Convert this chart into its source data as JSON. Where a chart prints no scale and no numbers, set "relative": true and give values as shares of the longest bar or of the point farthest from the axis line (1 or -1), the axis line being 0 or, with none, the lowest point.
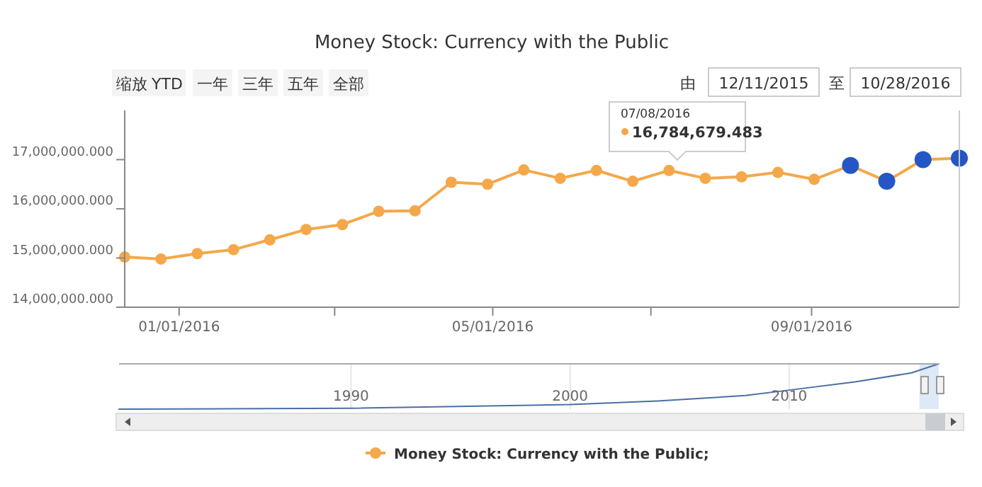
{
  "chart_data": [
    {
      "type": "line",
      "title": "Money Stock: Currency with the Public",
      "x": [
        "2015-12-11",
        "2015-12-25",
        "2016-01-08",
        "2016-01-22",
        "2016-02-05",
        "2016-02-19",
        "2016-03-04",
        "2016-03-18",
        "2016-04-01",
        "2016-04-15",
        "2016-04-29",
        "2016-05-13",
        "2016-05-27",
        "2016-06-10",
        "2016-06-24",
        "2016-07-08",
        "2016-07-22",
        "2016-08-05",
        "2016-08-19",
        "2016-09-02",
        "2016-09-16",
        "2016-09-30",
        "2016-10-14",
        "2016-10-28"
      ],
      "series": [
        {
          "name": "Money Stock: Currency with the Public;",
          "color": "#f4a84a",
          "values": [
            15020000,
            14980000,
            15090000,
            15170000,
            15370000,
            15580000,
            15680000,
            15950000,
            15960000,
            16540000,
            16500000,
            16790000,
            16620000,
            16780000,
            16560000,
            16780000,
            16620000,
            16650000,
            16740000,
            16600000,
            16880000,
            16560000,
            17000000,
            17030000
          ],
          "colors": [
            "#f4a84a",
            "#f4a84a",
            "#f4a84a",
            "#f4a84a",
            "#f4a84a",
            "#f4a84a",
            "#f4a84a",
            "#f4a84a",
            "#f4a84a",
            "#f4a84a",
            "#f4a84a",
            "#f4a84a",
            "#f4a84a",
            "#f4a84a",
            "#f4a84a",
            "#f4a84a",
            "#f4a84a",
            "#f4a84a",
            "#f4a84a",
            "#f4a84a",
            "#2457c5",
            "#2457c5",
            "#2457c5",
            "#2457c5"
          ]
        }
      ],
      "xlim": [
        "2015-12-11",
        "2016-10-28"
      ],
      "xticks": [
        {
          "value": "2016-01-01",
          "label": "01/01/2016"
        },
        {
          "value": "2016-03-01",
          "label": null
        },
        {
          "value": "2016-05-01",
          "label": "05/01/2016"
        },
        {
          "value": "2016-07-01",
          "label": null
        },
        {
          "value": "2016-09-01",
          "label": "09/01/2016"
        }
      ],
      "ylim": [
        14000000,
        18000000
      ],
      "yticks": [
        {
          "value": 14000000,
          "label": "14,000,000.000"
        },
        {
          "value": 15000000,
          "label": "15,000,000.000"
        },
        {
          "value": 16000000,
          "label": "16,000,000.000"
        },
        {
          "value": 17000000,
          "label": "17,000,000.000"
        }
      ],
      "marker": "circle",
      "grid": false,
      "legend": "bottom",
      "annotations": [
        "缩放",
        "YTD",
        "一年",
        "三年",
        "五年",
        "全部",
        "由",
        "12/11/2015",
        "至",
        "10/28/2016",
        "07/08/2016",
        "16,784,679.483"
      ]
    },
    {
      "type": "line",
      "relative": true,
      "x": [
        "1979-06",
        "1990",
        "2000",
        "2004",
        "2008",
        "2010",
        "2013",
        "2015-08",
        "2016-10-28"
      ],
      "series": [
        {
          "color": "#4a6fa5",
          "values": [
            0,
            0.02,
            0.1,
            0.18,
            0.3,
            0.42,
            0.6,
            0.8,
            1
          ]
        }
      ],
      "xlim": [
        "1979-06",
        "2016-11-10"
      ],
      "xticks": [
        "1990",
        "2000",
        "2010"
      ],
      "grid": "x",
      "tick_labels": "x",
      "bands": [
        {
          "axis": "x",
          "from": "2015-12-11",
          "to": "2016-10-28",
          "color": "#d6e4f5"
        }
      ]
    }
  ]
}
